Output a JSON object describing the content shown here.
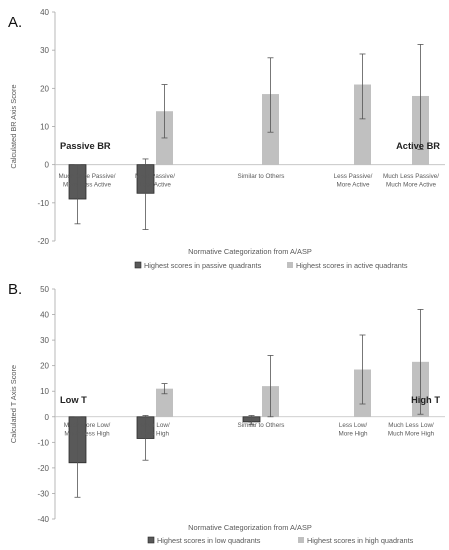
{
  "chart_data": [
    {
      "type": "bar",
      "panel_label": "A.",
      "title": "",
      "xlabel": "Normative Categorization from A/ASP",
      "ylabel": "Calculated BR Axis Score",
      "ylim": [
        -20,
        40
      ],
      "yticks": [
        -20,
        -10,
        0,
        10,
        20,
        30,
        40
      ],
      "grid": false,
      "legend_position": "bottom",
      "categories": [
        [
          "Much More Passive/",
          "More Less Active"
        ],
        [
          "More Passive/",
          "Less Active"
        ],
        [
          "Similar to Others"
        ],
        [
          "Less Passive/",
          "More Active"
        ],
        [
          "Much Less Passive/",
          "Much More Active"
        ]
      ],
      "series": [
        {
          "name": "Highest scores in passive quadrants",
          "color": "#595959",
          "values": [
            -9,
            -7.5,
            null,
            null,
            null
          ],
          "err_low": [
            -15.5,
            -17,
            null,
            null,
            null
          ],
          "err_high": [
            0,
            1.5,
            null,
            null,
            null
          ]
        },
        {
          "name": "Highest scores in active quadrants",
          "color": "#c0c0c0",
          "values": [
            null,
            14,
            18.5,
            21,
            18
          ],
          "err_low": [
            null,
            7,
            8.5,
            12,
            4
          ],
          "err_high": [
            null,
            21,
            28,
            29,
            31.5
          ]
        }
      ],
      "annotations": [
        {
          "text": "Passive BR",
          "anchor": "left"
        },
        {
          "text": "Active BR",
          "anchor": "right"
        }
      ]
    },
    {
      "type": "bar",
      "panel_label": "B.",
      "title": "",
      "xlabel": "Normative Categorization from A/ASP",
      "ylabel": "Calculated T Axis Score",
      "ylim": [
        -40,
        50
      ],
      "yticks": [
        -40,
        -30,
        -20,
        -10,
        0,
        10,
        20,
        30,
        40,
        50
      ],
      "grid": false,
      "legend_position": "bottom",
      "categories": [
        [
          "Much More Low/",
          "Much Less High"
        ],
        [
          "More Low/",
          "Less High"
        ],
        [
          "Similar to Others"
        ],
        [
          "Less Low/",
          "More High"
        ],
        [
          "Much Less Low/",
          "Much More High"
        ]
      ],
      "series": [
        {
          "name": "Highest scores in low quadrants",
          "color": "#595959",
          "values": [
            -18,
            -8.5,
            -2,
            null,
            null
          ],
          "err_low": [
            -31.5,
            -17,
            -3,
            null,
            null
          ],
          "err_high": [
            0,
            0.5,
            0.5,
            null,
            null
          ]
        },
        {
          "name": "Highest scores in high quadrants",
          "color": "#c0c0c0",
          "values": [
            null,
            11,
            12,
            null,
            null
          ],
          "err_low": [
            null,
            9,
            0,
            null,
            null
          ],
          "err_high": [
            null,
            13,
            24,
            null,
            null
          ]
        },
        {
          "name": "Highest scores in high quadrants",
          "color": "#c0c0c0",
          "values": [
            null,
            null,
            null,
            18.5,
            21.5
          ],
          "err_low": [
            null,
            null,
            null,
            5,
            1
          ],
          "err_high": [
            null,
            null,
            null,
            32,
            42
          ]
        }
      ],
      "annotations": [
        {
          "text": "Low T",
          "anchor": "left"
        },
        {
          "text": "High T",
          "anchor": "right"
        }
      ]
    }
  ]
}
